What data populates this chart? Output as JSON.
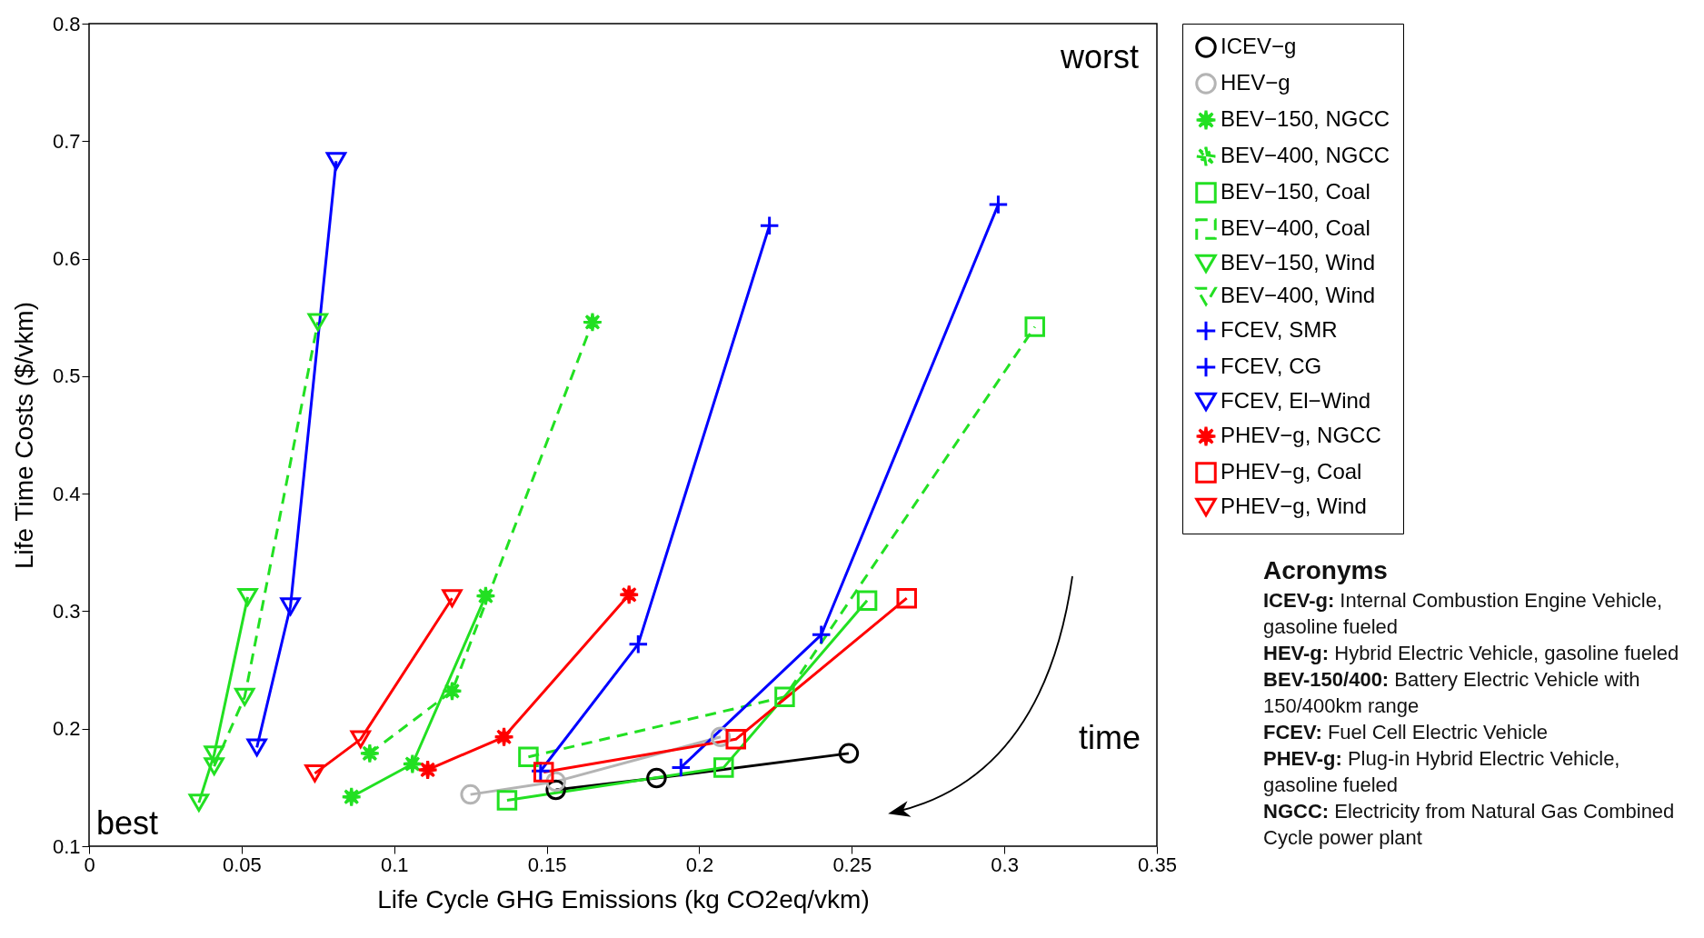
{
  "chart_data": {
    "type": "line",
    "xlabel": "Life Cycle GHG Emissions (kg CO2eq/vkm)",
    "ylabel": "Life Time Costs ($/vkm)",
    "xlim": [
      0,
      0.35
    ],
    "xticks": [
      0,
      0.05,
      0.1,
      0.15,
      0.2,
      0.25,
      0.3,
      0.35
    ],
    "ylim": [
      0.1,
      0.8
    ],
    "yticks": [
      0.1,
      0.2,
      0.3,
      0.4,
      0.5,
      0.6,
      0.7,
      0.8
    ],
    "grid": false,
    "legend": "right",
    "series": [
      {
        "name": "ICEV−g",
        "color": "#000000",
        "marker": "circle",
        "line_style": "solid",
        "x": [
          0.153,
          0.186,
          0.249
        ],
        "values": [
          0.148,
          0.158,
          0.179
        ]
      },
      {
        "name": "HEV−g",
        "color": "#b4b4b4",
        "marker": "circle",
        "line_style": "solid",
        "x": [
          0.125,
          0.153,
          0.207
        ],
        "values": [
          0.144,
          0.155,
          0.193
        ]
      },
      {
        "name": "BEV−150, NGCC",
        "color": "#22e022",
        "marker": "star",
        "line_style": "solid",
        "x": [
          0.086,
          0.106,
          0.13
        ],
        "values": [
          0.142,
          0.17,
          0.313
        ]
      },
      {
        "name": "BEV−400, NGCC",
        "color": "#22e022",
        "marker": "star",
        "line_style": "dashed",
        "x": [
          0.092,
          0.119,
          0.165
        ],
        "values": [
          0.179,
          0.232,
          0.546
        ]
      },
      {
        "name": "BEV−150, Coal",
        "color": "#22e022",
        "marker": "square",
        "line_style": "solid",
        "x": [
          0.137,
          0.208,
          0.255
        ],
        "values": [
          0.139,
          0.167,
          0.309
        ]
      },
      {
        "name": "BEV−400, Coal",
        "color": "#22e022",
        "marker": "square",
        "line_style": "dashed",
        "x": [
          0.144,
          0.228,
          0.31
        ],
        "values": [
          0.176,
          0.227,
          0.542
        ]
      },
      {
        "name": "BEV−150, Wind",
        "color": "#22e022",
        "marker": "triangle",
        "line_style": "solid",
        "x": [
          0.036,
          0.041,
          0.052
        ],
        "values": [
          0.137,
          0.178,
          0.312
        ]
      },
      {
        "name": "BEV−400, Wind",
        "color": "#22e022",
        "marker": "triangle",
        "line_style": "dashed",
        "x": [
          0.041,
          0.051,
          0.075
        ],
        "values": [
          0.168,
          0.227,
          0.546
        ]
      },
      {
        "name": "FCEV, SMR",
        "color": "#0000ff",
        "marker": "cross",
        "line_style": "solid",
        "x": [
          0.148,
          0.18,
          0.223
        ],
        "values": [
          0.164,
          0.272,
          0.628
        ]
      },
      {
        "name": "FCEV, CG",
        "color": "#0000ff",
        "marker": "cross",
        "line_style": "solid",
        "x": [
          0.194,
          0.24,
          0.298
        ],
        "values": [
          0.167,
          0.28,
          0.646
        ]
      },
      {
        "name": "FCEV, El−Wind",
        "color": "#0000ff",
        "marker": "triangle",
        "line_style": "solid",
        "x": [
          0.055,
          0.066,
          0.081
        ],
        "values": [
          0.184,
          0.304,
          0.683
        ]
      },
      {
        "name": "PHEV−g, NGCC",
        "color": "#ff0000",
        "marker": "star",
        "line_style": "solid",
        "x": [
          0.111,
          0.136,
          0.177
        ],
        "values": [
          0.165,
          0.193,
          0.314
        ]
      },
      {
        "name": "PHEV−g, Coal",
        "color": "#ff0000",
        "marker": "square",
        "line_style": "solid",
        "x": [
          0.149,
          0.212,
          0.268
        ],
        "values": [
          0.163,
          0.191,
          0.311
        ]
      },
      {
        "name": "PHEV−g, Wind",
        "color": "#ff0000",
        "marker": "triangle",
        "line_style": "solid",
        "x": [
          0.074,
          0.089,
          0.119
        ],
        "values": [
          0.162,
          0.191,
          0.311
        ]
      }
    ],
    "annotations": [
      "worst",
      "best",
      "time",
      "Acronyms",
      "ICEV-g: Internal Combustion Engine Vehicle, gasoline fueled",
      "HEV-g: Hybrid Electric Vehicle, gasoline fueled",
      "BEV-150/400: Battery Electric Vehicle with 150/400km range",
      "FCEV: Fuel Cell Electric Vehicle",
      "PHEV-g: Plug-in Hybrid Electric Vehicle, gasoline fueled",
      "NGCC: Electricity from Natural Gas Combined Cycle power plant"
    ]
  }
}
